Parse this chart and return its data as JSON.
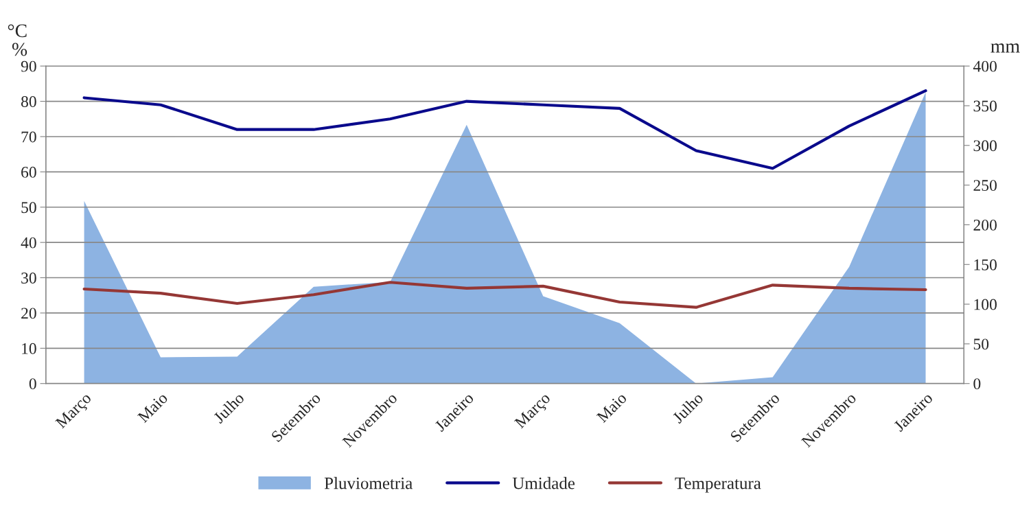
{
  "chart_data": {
    "type": "line",
    "categories": [
      "Março",
      "Maio",
      "Julho",
      "Setembro",
      "Novembro",
      "Janeiro",
      "Março",
      "Maio",
      "Julho",
      "Setembro",
      "Novembro",
      "Janeiro"
    ],
    "ylabel": "°C\n%",
    "y2label": "mm",
    "ylim": [
      0,
      90
    ],
    "yticks": [
      0,
      10,
      20,
      30,
      40,
      50,
      60,
      70,
      80,
      90
    ],
    "y2lim": [
      0,
      400
    ],
    "y2ticks": [
      0,
      50,
      100,
      150,
      200,
      250,
      300,
      350,
      400
    ],
    "grid": "y",
    "legend": "bottom",
    "series": [
      {
        "name": "Pluviometria",
        "type": "area",
        "axis": "y2",
        "color": "#8db3e2",
        "values": [
          230,
          33,
          34,
          122,
          128,
          326,
          110,
          76,
          0,
          8,
          147,
          367
        ]
      },
      {
        "name": "Umidade",
        "color": "#0a0a8c",
        "values": [
          81,
          79,
          72,
          72,
          75,
          80,
          79,
          78,
          66,
          61,
          73,
          83
        ]
      },
      {
        "name": "Temperatura",
        "color": "#953735",
        "values": [
          26.8,
          25.6,
          22.7,
          25.2,
          28.7,
          27.0,
          27.6,
          23.1,
          21.6,
          27.9,
          27.0,
          26.6
        ]
      }
    ]
  }
}
